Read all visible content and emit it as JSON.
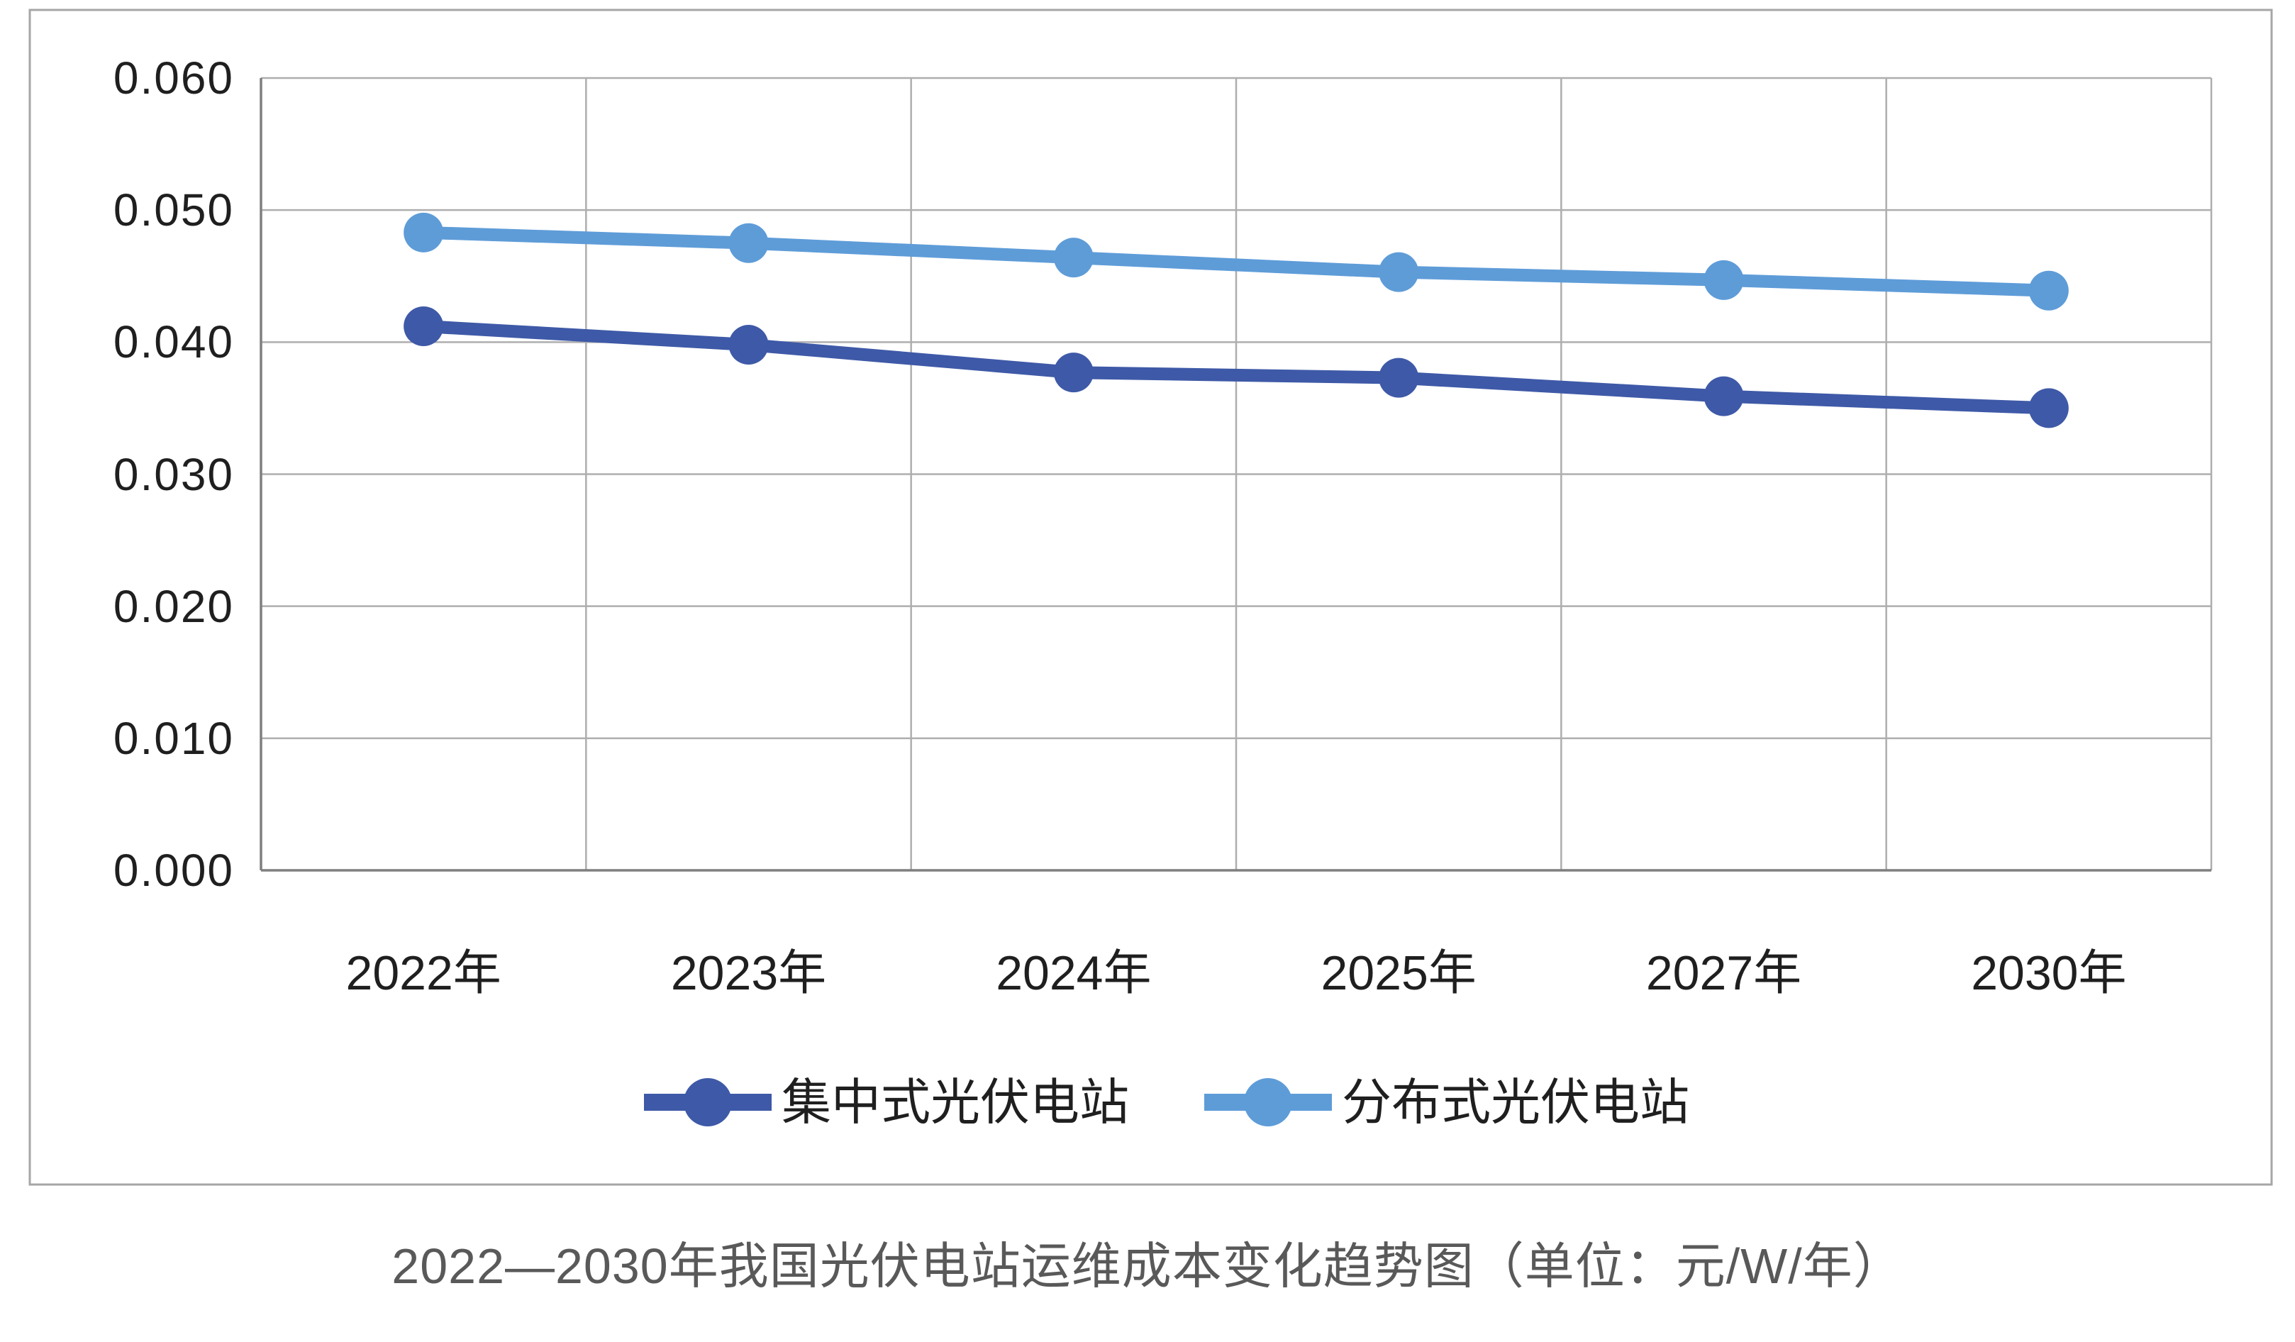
{
  "chart_data": {
    "type": "line",
    "title": "2022—2030年我国光伏电站运维成本变化趋势图（单位：元/W/年）",
    "categories": [
      "2022年",
      "2023年",
      "2024年",
      "2025年",
      "2027年",
      "2030年"
    ],
    "series": [
      {
        "name": "集中式光伏电站",
        "color": "#3E59A7",
        "values": [
          0.0412,
          0.0398,
          0.0377,
          0.0373,
          0.0359,
          0.035
        ]
      },
      {
        "name": "分布式光伏电站",
        "color": "#5E9CD8",
        "values": [
          0.0483,
          0.0475,
          0.0464,
          0.0453,
          0.0447,
          0.0439
        ]
      }
    ],
    "ylim": [
      0.0,
      0.06
    ],
    "y_tick_step": 0.01,
    "y_ticks_top_to_bottom": [
      "0.060",
      "0.050",
      "0.040",
      "0.030",
      "0.020",
      "0.010",
      "0.000"
    ],
    "grid": true,
    "legend_position": "bottom-inside"
  },
  "colors": {
    "background": "#FFFFFF",
    "card_border": "#A6A6A6",
    "gridline": "#AEAEAE",
    "axis_line": "#7F7F7F",
    "tick_label": "#1F1F1F",
    "title_text": "#595959",
    "legend_label": "#1F1F1F"
  }
}
